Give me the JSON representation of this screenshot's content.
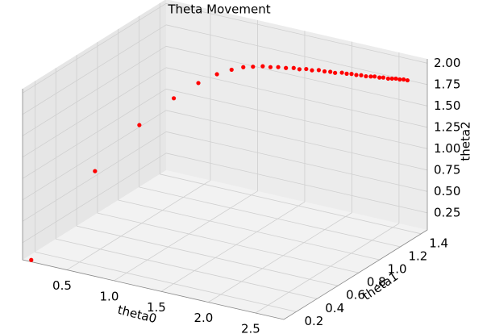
{
  "chart_data": {
    "type": "scatter3d",
    "title": "Theta Movement",
    "x_label": "theta0",
    "y_label": "theta1",
    "z_label": "theta2",
    "xlim": [
      0.03,
      2.8
    ],
    "ylim": [
      0.08,
      1.46
    ],
    "zlim": [
      0.05,
      2.05
    ],
    "xticks": [
      0.5,
      {
        "value": 1,
        "label": "1.0"
      },
      1.5,
      {
        "value": 2,
        "label": "2.0"
      },
      2.5
    ],
    "yticks": [
      0.2,
      0.4,
      0.6,
      0.8,
      {
        "value": 1,
        "label": "1.0"
      },
      1.2,
      1.4
    ],
    "zticks": [
      0.25,
      {
        "value": 0.5,
        "label": "0.50"
      },
      0.75,
      {
        "value": 1,
        "label": "1.00"
      },
      1.25,
      {
        "value": 1.5,
        "label": "1.50"
      },
      1.75,
      {
        "value": 2,
        "label": "2.00"
      }
    ],
    "grid": true,
    "color": "#ff0000",
    "x": [
      0.1,
      0.5,
      0.75,
      0.95,
      1.1,
      1.22,
      1.32,
      1.4,
      1.47,
      1.54,
      1.6,
      1.66,
      1.72,
      1.78,
      1.83,
      1.88,
      1.93,
      1.98,
      2.03,
      2.08,
      2.12,
      2.17,
      2.21,
      2.25,
      2.29,
      2.33,
      2.37,
      2.41,
      2.44,
      2.48,
      2.51,
      2.55,
      2.58,
      2.61,
      2.64,
      2.67,
      2.7
    ],
    "y": [
      0.1,
      0.35,
      0.55,
      0.7,
      0.8,
      0.87,
      0.92,
      0.96,
      0.99,
      1.02,
      1.04,
      1.06,
      1.08,
      1.1,
      1.11,
      1.13,
      1.14,
      1.16,
      1.17,
      1.18,
      1.19,
      1.21,
      1.22,
      1.23,
      1.24,
      1.25,
      1.26,
      1.27,
      1.28,
      1.29,
      1.3,
      1.31,
      1.32,
      1.33,
      1.34,
      1.35,
      1.36
    ],
    "z": [
      0.05,
      1.0,
      1.45,
      1.7,
      1.84,
      1.92,
      1.96,
      1.98,
      1.98,
      1.98,
      1.97,
      1.97,
      1.96,
      1.96,
      1.95,
      1.95,
      1.94,
      1.94,
      1.93,
      1.93,
      1.92,
      1.92,
      1.91,
      1.91,
      1.9,
      1.9,
      1.89,
      1.89,
      1.89,
      1.88,
      1.88,
      1.87,
      1.87,
      1.87,
      1.86,
      1.86,
      1.85
    ]
  }
}
